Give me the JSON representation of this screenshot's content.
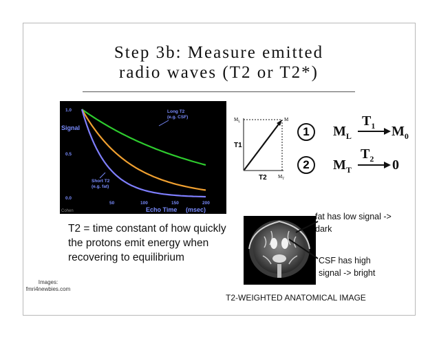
{
  "slide": {
    "title_line1": "Step 3b: Measure emitted",
    "title_line2": "radio waves (T2 or T2*)",
    "description": "T2 = time constant of how quickly the protons emit energy when recovering to equilibrium",
    "credit": "Images: fmri4newbies.com",
    "mri_caption": "T2-WEIGHTED ANATOMICAL IMAGE",
    "note_fat": "fat has low signal -> dark",
    "note_csf": "CSF has high signal -> bright"
  },
  "chart_data": {
    "type": "line",
    "ylabel": "Signal",
    "xlabel": "Echo Time",
    "xlabel_unit": "(msec)",
    "watermark": "Cohen",
    "x_ticks": [
      "50",
      "100",
      "150",
      "200"
    ],
    "y_ticks": [
      "1.0",
      "0.5",
      "0.0"
    ],
    "xlim": [
      0,
      200
    ],
    "ylim": [
      0,
      1.0
    ],
    "series": [
      {
        "name": "Long T2 (e.g. CSF)",
        "color": "#2ecc2e",
        "t2": 200
      },
      {
        "name": "",
        "color": "#f0a030",
        "t2": 80
      },
      {
        "name": "Short T2 (e.g. fat)",
        "color": "#7f7fff",
        "t2": 40
      }
    ],
    "labels": {
      "long_line1": "Long T2",
      "long_line2": "(e.g. CSF)",
      "short_line1": "Short T2",
      "short_line2": "(e.g. fat)"
    }
  },
  "vector_diagram": {
    "m_l": "M",
    "m_l_sub": "L",
    "m": "M",
    "m_t": "M",
    "m_t_sub": "T",
    "t1": "T1",
    "t2": "T2"
  },
  "equations": {
    "one": {
      "num": "1",
      "from": "M",
      "from_sub": "L",
      "label": "T",
      "label_sub": "1",
      "to": "M",
      "to_sub": "0"
    },
    "two": {
      "num": "2",
      "from": "M",
      "from_sub": "T",
      "label": "T",
      "label_sub": "2",
      "to": "0"
    }
  }
}
